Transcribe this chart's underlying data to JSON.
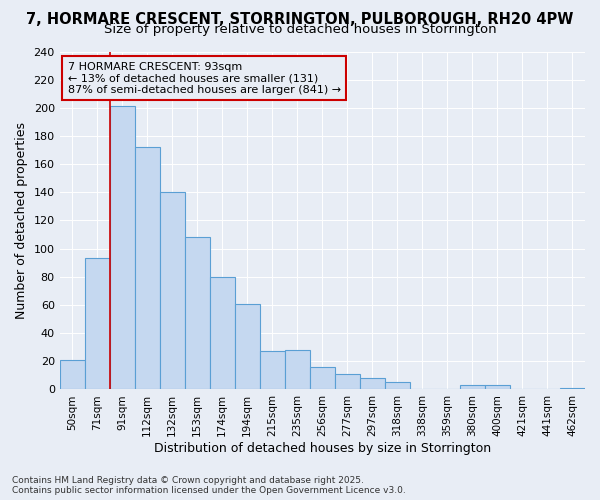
{
  "title": "7, HORMARE CRESCENT, STORRINGTON, PULBOROUGH, RH20 4PW",
  "subtitle": "Size of property relative to detached houses in Storrington",
  "xlabel": "Distribution of detached houses by size in Storrington",
  "ylabel": "Number of detached properties",
  "categories": [
    "50sqm",
    "71sqm",
    "91sqm",
    "112sqm",
    "132sqm",
    "153sqm",
    "174sqm",
    "194sqm",
    "215sqm",
    "235sqm",
    "256sqm",
    "277sqm",
    "297sqm",
    "318sqm",
    "338sqm",
    "359sqm",
    "380sqm",
    "400sqm",
    "421sqm",
    "441sqm",
    "462sqm"
  ],
  "values": [
    21,
    93,
    201,
    172,
    140,
    108,
    80,
    61,
    27,
    28,
    16,
    11,
    8,
    5,
    0,
    0,
    3,
    3,
    0,
    0,
    1
  ],
  "bar_color": "#c5d8f0",
  "bar_edge_color": "#5a9fd4",
  "property_label": "7 HORMARE CRESCENT: 93sqm",
  "annotation_line1": "← 13% of detached houses are smaller (131)",
  "annotation_line2": "87% of semi-detached houses are larger (841) →",
  "annotation_box_color": "#cc0000",
  "vline_color": "#cc0000",
  "vline_x_index": 2,
  "ylim": [
    0,
    240
  ],
  "yticks": [
    0,
    20,
    40,
    60,
    80,
    100,
    120,
    140,
    160,
    180,
    200,
    220,
    240
  ],
  "background_color": "#e8edf5",
  "grid_color": "#ffffff",
  "footer_line1": "Contains HM Land Registry data © Crown copyright and database right 2025.",
  "footer_line2": "Contains public sector information licensed under the Open Government Licence v3.0.",
  "title_fontsize": 10.5,
  "subtitle_fontsize": 9.5,
  "axis_label_fontsize": 9,
  "tick_fontsize": 8,
  "footer_fontsize": 6.5
}
